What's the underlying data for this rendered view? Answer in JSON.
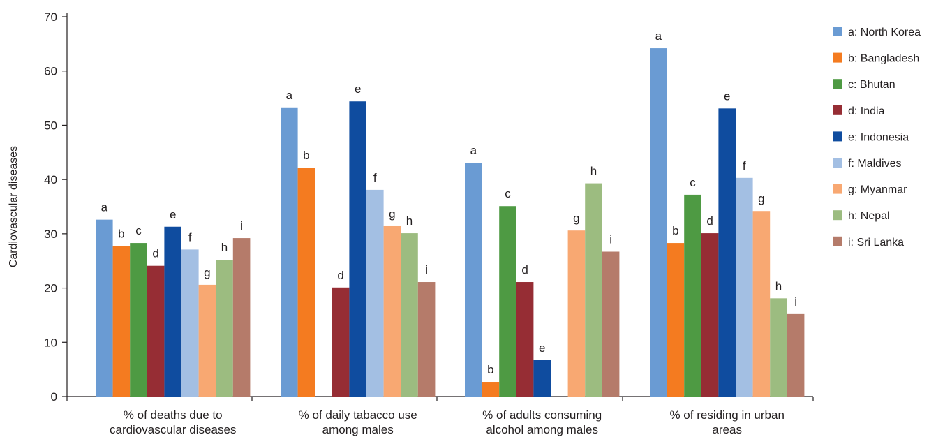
{
  "chart_data": {
    "type": "bar",
    "xlabel": "",
    "ylabel": "Cardiovascular diseases",
    "ylim": [
      0,
      70
    ],
    "yticks": [
      0,
      10,
      20,
      30,
      40,
      50,
      60,
      70
    ],
    "grid": false,
    "legend_position": "right",
    "categories": [
      [
        "% of deaths due to",
        "cardiovascular diseases"
      ],
      [
        "% of daily tabacco use",
        "among males"
      ],
      [
        "% of adults consuming",
        "alcohol among males"
      ],
      [
        "% of residing in urban",
        "areas"
      ]
    ],
    "series": [
      {
        "letter": "a",
        "name": "a: North Korea",
        "color": "#6a9bd3",
        "values": [
          32.6,
          53.3,
          43.1,
          64.2
        ]
      },
      {
        "letter": "b",
        "name": "b: Bangladesh",
        "color": "#f47b20",
        "values": [
          27.7,
          42.2,
          2.7,
          28.3
        ]
      },
      {
        "letter": "c",
        "name": "c: Bhutan",
        "color": "#4e9a43",
        "values": [
          28.3,
          null,
          35.1,
          37.2
        ]
      },
      {
        "letter": "d",
        "name": "d: India",
        "color": "#962d34",
        "values": [
          24.1,
          20.1,
          21.1,
          30.1
        ]
      },
      {
        "letter": "e",
        "name": "e: Indonesia",
        "color": "#0f4c9f",
        "values": [
          31.3,
          54.4,
          6.7,
          53.1
        ]
      },
      {
        "letter": "f",
        "name": "f: Maldives",
        "color": "#a3bfe3",
        "values": [
          27.1,
          38.1,
          null,
          40.3
        ]
      },
      {
        "letter": "g",
        "name": "g: Myanmar",
        "color": "#f8a872",
        "values": [
          20.6,
          31.4,
          30.6,
          34.2
        ]
      },
      {
        "letter": "h",
        "name": "h: Nepal",
        "color": "#9cbc80",
        "values": [
          25.2,
          30.1,
          39.3,
          18.1
        ]
      },
      {
        "letter": "i",
        "name": "i: Sri Lanka",
        "color": "#b57b6a",
        "values": [
          29.2,
          21.1,
          26.7,
          15.2
        ]
      }
    ]
  }
}
